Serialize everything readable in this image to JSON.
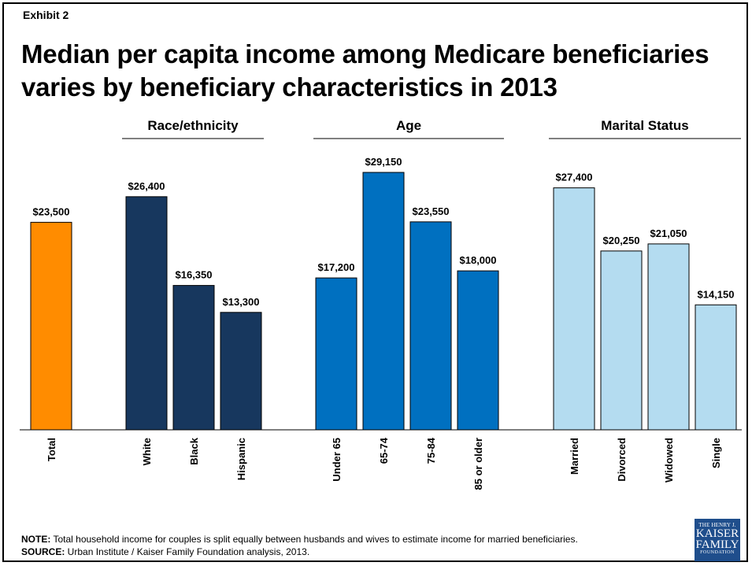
{
  "header": {
    "exhibit": "Exhibit 2",
    "title": "Median per capita income among Medicare beneficiaries varies by beneficiary characteristics in 2013"
  },
  "chart_data": {
    "type": "bar",
    "ylim": [
      0,
      30000
    ],
    "grid": false,
    "groups": [
      {
        "label": "",
        "color": "#ff8c00",
        "categories": [
          "Total"
        ],
        "values": [
          23500
        ],
        "value_labels": [
          "$23,500"
        ]
      },
      {
        "label": "Race/ethnicity",
        "color": "#17375e",
        "categories": [
          "White",
          "Black",
          "Hispanic"
        ],
        "values": [
          26400,
          16350,
          13300
        ],
        "value_labels": [
          "$26,400",
          "$16,350",
          "$13,300"
        ]
      },
      {
        "label": "Age",
        "color": "#0070c0",
        "categories": [
          "Under 65",
          "65-74",
          "75-84",
          "85 or older"
        ],
        "values": [
          17200,
          29150,
          23550,
          18000
        ],
        "value_labels": [
          "$17,200",
          "$29,150",
          "$23,550",
          "$18,000"
        ]
      },
      {
        "label": "Marital Status",
        "color": "#b4dcf0",
        "categories": [
          "Married",
          "Divorced",
          "Widowed",
          "Single"
        ],
        "values": [
          27400,
          20250,
          21050,
          14150
        ],
        "value_labels": [
          "$27,400",
          "$20,250",
          "$21,050",
          "$14,150"
        ]
      }
    ]
  },
  "notes": {
    "note_label": "NOTE:",
    "note_text": " Total household income for couples is split equally between husbands and wives  to estimate income for married beneficiaries.",
    "source_label": "SOURCE:",
    "source_text": " Urban Institute / Kaiser Family Foundation analysis, 2013."
  },
  "logo": {
    "line1": "THE HENRY J.",
    "line2": "KAISER",
    "line3": "FAMILY",
    "line4": "FOUNDATION"
  }
}
